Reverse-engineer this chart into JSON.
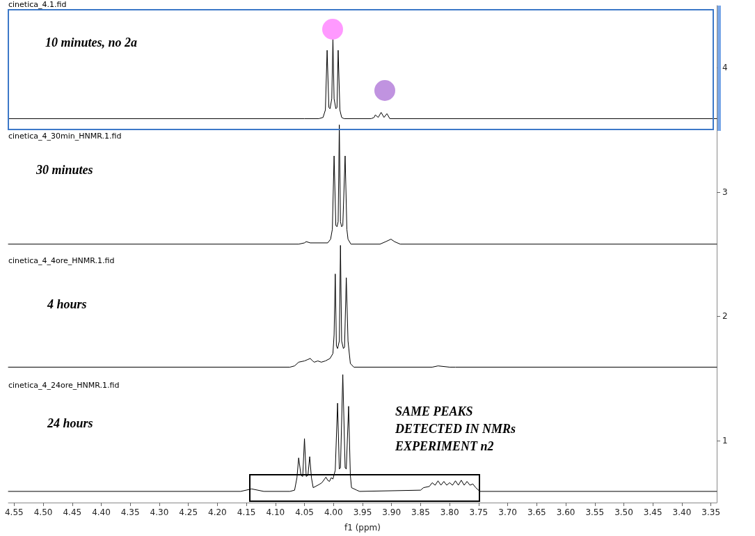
{
  "chart_data": {
    "type": "line",
    "xlabel": "f1 (ppm)",
    "xlim": [
      4.56,
      3.34
    ],
    "ylim": [
      0.5,
      4.5
    ],
    "xticks": [
      4.55,
      {
        "value": 4.5,
        "label": "4.50"
      },
      4.45,
      {
        "value": 4.4,
        "label": "4.40"
      },
      4.35,
      {
        "value": 4.3,
        "label": "4.30"
      },
      4.25,
      {
        "value": 4.2,
        "label": "4.20"
      },
      4.15,
      {
        "value": 4.1,
        "label": "4.10"
      },
      4.05,
      {
        "value": 4,
        "label": "4.00"
      },
      3.95,
      {
        "value": 3.9,
        "label": "3.90"
      },
      3.85,
      {
        "value": 3.8,
        "label": "3.80"
      },
      3.75,
      {
        "value": 3.7,
        "label": "3.70"
      },
      3.65,
      {
        "value": 3.6,
        "label": "3.60"
      },
      3.55,
      {
        "value": 3.5,
        "label": "3.50"
      },
      3.45,
      {
        "value": 3.4,
        "label": "3.40"
      },
      3.35
    ],
    "yticks": [
      1,
      2,
      3,
      4
    ],
    "grid": false,
    "marker": "none",
    "line_style": "solid",
    "annotations": [
      "cinetica_4.1.fid",
      "cinetica_4_30min_HNMR.1.fid",
      "cinetica_4_4ore_HNMR.1.fid",
      "cinetica_4_24ore_HNMR.1.fid",
      "10 minutes, no 2a",
      "30 minutes",
      "4 hours",
      "24 hours",
      "SAME PEAKS\nDETECTED IN NMRs\nEXPERIMENT n2"
    ],
    "series": [
      {
        "color": "#000000",
        "x": [
          4.56,
          4.05,
          4.025,
          4.018,
          4.014,
          4.011,
          4.008,
          4.006,
          4.003,
          4.001,
          3.999,
          3.996,
          3.994,
          3.992,
          3.989,
          3.986,
          3.982,
          3.935,
          3.93,
          3.928,
          3.923,
          3.918,
          3.913,
          3.908,
          3.903,
          3.34
        ],
        "values": [
          3.59,
          3.59,
          3.59,
          3.6,
          3.66,
          4.14,
          3.68,
          3.67,
          3.75,
          4.23,
          3.75,
          3.67,
          3.68,
          4.14,
          3.66,
          3.6,
          3.59,
          3.59,
          3.6,
          3.62,
          3.6,
          3.64,
          3.6,
          3.63,
          3.59,
          3.59
        ]
      },
      {
        "color": "#000000",
        "x": [
          4.56,
          4.06,
          4.05,
          4.047,
          4.04,
          4.01,
          4.005,
          4.002,
          3.999,
          3.996,
          3.994,
          3.992,
          3.99,
          3.988,
          3.986,
          3.984,
          3.98,
          3.977,
          3.975,
          3.97,
          3.92,
          3.91,
          3.901,
          3.895,
          3.885,
          3.34
        ],
        "values": [
          2.58,
          2.58,
          2.59,
          2.6,
          2.59,
          2.59,
          2.62,
          2.7,
          3.29,
          2.73,
          2.72,
          2.76,
          3.54,
          2.76,
          2.72,
          2.73,
          3.29,
          2.7,
          2.62,
          2.58,
          2.58,
          2.6,
          2.62,
          2.6,
          2.58,
          2.58
        ]
      },
      {
        "color": "#000000",
        "x": [
          4.56,
          4.075,
          4.067,
          4.06,
          4.05,
          4.045,
          4.04,
          4.036,
          4.033,
          4.027,
          4.021,
          4.014,
          4.006,
          4.001,
          3.999,
          3.997,
          3.995,
          3.993,
          3.99,
          3.988,
          3.986,
          3.983,
          3.981,
          3.978,
          3.975,
          3.971,
          3.965,
          3.83,
          3.82,
          3.8,
          3.79,
          3.34
        ],
        "values": [
          1.59,
          1.59,
          1.6,
          1.63,
          1.64,
          1.65,
          1.66,
          1.64,
          1.63,
          1.64,
          1.63,
          1.64,
          1.66,
          1.7,
          1.85,
          2.34,
          1.76,
          1.74,
          1.8,
          2.57,
          1.8,
          1.74,
          1.75,
          2.31,
          1.8,
          1.62,
          1.59,
          1.59,
          1.6,
          1.59,
          1.59,
          1.59
        ]
      },
      {
        "color": "#000000",
        "x": [
          4.56,
          4.16,
          4.141,
          4.12,
          4.075,
          4.067,
          4.063,
          4.06,
          4.056,
          4.053,
          4.05,
          4.047,
          4.044,
          4.041,
          4.038,
          4.035,
          4.025,
          4.02,
          4.013,
          4.01,
          4.007,
          4.004,
          4.001,
          3.997,
          3.993,
          3.99,
          3.988,
          3.984,
          3.98,
          3.978,
          3.974,
          3.971,
          3.969,
          3.96,
          3.955,
          3.85,
          3.845,
          3.835,
          3.83,
          3.825,
          3.82,
          3.815,
          3.81,
          3.805,
          3.8,
          3.795,
          3.79,
          3.785,
          3.78,
          3.775,
          3.77,
          3.765,
          3.76,
          3.755,
          3.748,
          3.34
        ],
        "values": [
          0.59,
          0.59,
          0.61,
          0.59,
          0.59,
          0.6,
          0.7,
          0.86,
          0.72,
          0.71,
          1.015,
          0.71,
          0.72,
          0.87,
          0.7,
          0.62,
          0.645,
          0.66,
          0.705,
          0.68,
          0.67,
          0.7,
          0.69,
          0.76,
          1.3,
          0.77,
          0.78,
          1.53,
          0.78,
          0.77,
          1.275,
          0.72,
          0.62,
          0.6,
          0.59,
          0.6,
          0.62,
          0.63,
          0.66,
          0.64,
          0.675,
          0.64,
          0.67,
          0.64,
          0.66,
          0.64,
          0.675,
          0.64,
          0.68,
          0.64,
          0.67,
          0.64,
          0.65,
          0.62,
          0.59,
          0.59
        ]
      }
    ]
  }
}
